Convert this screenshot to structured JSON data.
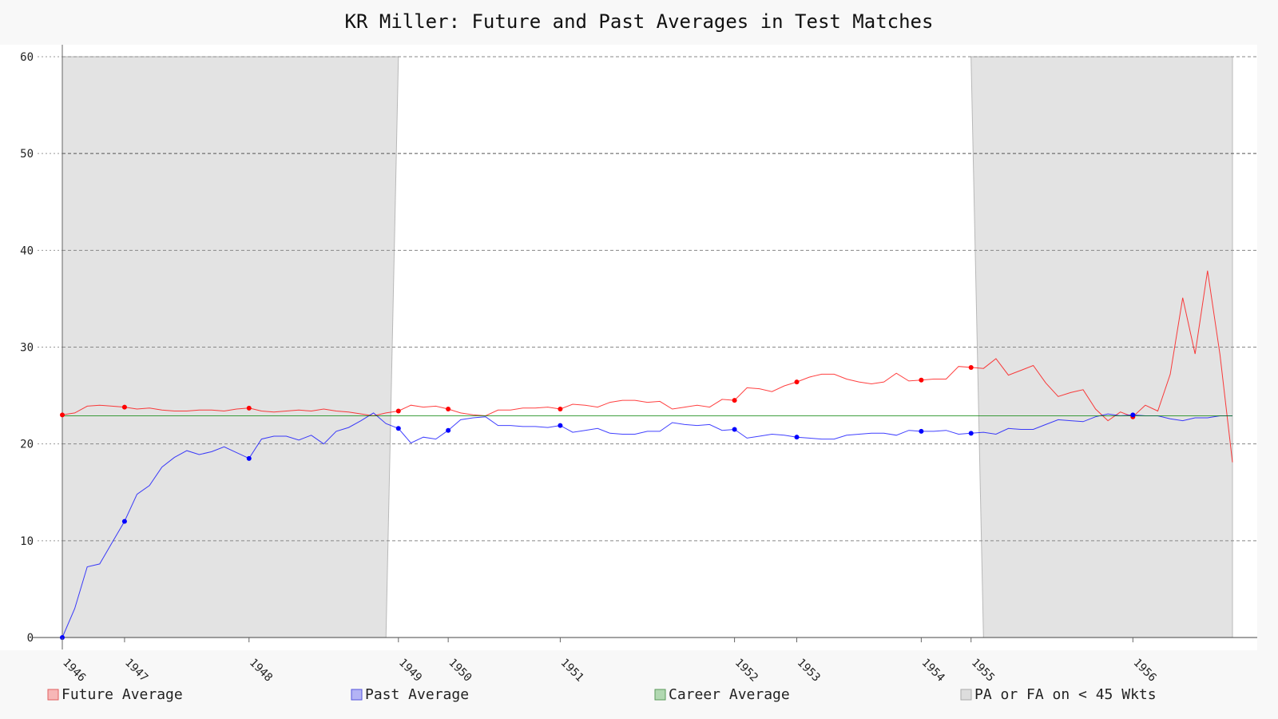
{
  "chart_data": {
    "type": "line",
    "title": "KR Miller: Future and Past Averages in Test Matches",
    "xlabel": "",
    "ylabel": "",
    "ylim": [
      0,
      60
    ],
    "yticks": [
      0,
      10,
      20,
      30,
      40,
      50,
      60
    ],
    "grid": true,
    "legend_position": "bottom",
    "x_tick_labels": [
      {
        "label": "1946",
        "index": 0
      },
      {
        "label": "1947",
        "index": 5
      },
      {
        "label": "1948",
        "index": 15
      },
      {
        "label": "1949",
        "index": 27
      },
      {
        "label": "1950",
        "index": 31
      },
      {
        "label": "1951",
        "index": 40
      },
      {
        "label": "1952",
        "index": 54
      },
      {
        "label": "1953",
        "index": 59
      },
      {
        "label": "1954",
        "index": 69
      },
      {
        "label": "1955",
        "index": 73
      },
      {
        "label": "1956",
        "index": 86
      }
    ],
    "series": [
      {
        "name": "Future Average",
        "color": "#ff0000",
        "values": [
          23.0,
          23.2,
          23.9,
          24.0,
          23.9,
          23.8,
          23.6,
          23.7,
          23.5,
          23.4,
          23.4,
          23.5,
          23.5,
          23.4,
          23.6,
          23.7,
          23.4,
          23.3,
          23.4,
          23.5,
          23.4,
          23.6,
          23.4,
          23.3,
          23.1,
          22.9,
          23.2,
          23.4,
          24.0,
          23.8,
          23.9,
          23.6,
          23.2,
          23.0,
          22.9,
          23.5,
          23.5,
          23.7,
          23.7,
          23.8,
          23.6,
          24.1,
          24.0,
          23.8,
          24.3,
          24.5,
          24.5,
          24.3,
          24.4,
          23.6,
          23.8,
          24.0,
          23.8,
          24.6,
          24.5,
          25.8,
          25.7,
          25.4,
          26.0,
          26.4,
          26.9,
          27.2,
          27.2,
          26.7,
          26.4,
          26.2,
          26.4,
          27.3,
          26.5,
          26.6,
          26.7,
          26.7,
          28.0,
          27.9,
          27.8,
          28.8,
          27.1,
          27.6,
          28.1,
          26.3,
          24.9,
          25.3,
          25.6,
          23.6,
          22.4,
          23.3,
          22.8,
          24.0,
          23.4,
          27.2,
          35.1,
          29.3,
          37.9,
          29.2,
          18.1
        ],
        "markers": [
          {
            "index": 0,
            "value": 23.0
          },
          {
            "index": 5,
            "value": 23.8
          },
          {
            "index": 15,
            "value": 23.7
          },
          {
            "index": 27,
            "value": 23.4
          },
          {
            "index": 31,
            "value": 23.6
          },
          {
            "index": 40,
            "value": 23.6
          },
          {
            "index": 54,
            "value": 24.5
          },
          {
            "index": 59,
            "value": 26.4
          },
          {
            "index": 69,
            "value": 26.6
          },
          {
            "index": 73,
            "value": 27.9
          },
          {
            "index": 86,
            "value": 22.8
          }
        ]
      },
      {
        "name": "Past Average",
        "color": "#0000ff",
        "values": [
          0.0,
          3.0,
          7.3,
          7.6,
          9.8,
          12.0,
          14.8,
          15.7,
          17.6,
          18.6,
          19.3,
          18.9,
          19.2,
          19.7,
          19.1,
          18.5,
          20.5,
          20.8,
          20.8,
          20.4,
          20.9,
          20.0,
          21.3,
          21.7,
          22.4,
          23.2,
          22.1,
          21.6,
          20.1,
          20.7,
          20.5,
          21.4,
          22.5,
          22.7,
          22.8,
          21.9,
          21.9,
          21.8,
          21.8,
          21.7,
          21.9,
          21.2,
          21.4,
          21.6,
          21.1,
          21.0,
          21.0,
          21.3,
          21.3,
          22.2,
          22.0,
          21.9,
          22.0,
          21.4,
          21.5,
          20.6,
          20.8,
          21.0,
          20.9,
          20.7,
          20.6,
          20.5,
          20.5,
          20.9,
          21.0,
          21.1,
          21.1,
          20.9,
          21.4,
          21.3,
          21.3,
          21.4,
          21.0,
          21.1,
          21.2,
          21.0,
          21.6,
          21.5,
          21.5,
          22.0,
          22.5,
          22.4,
          22.3,
          22.8,
          23.1,
          22.9,
          23.0,
          22.9,
          22.9,
          22.6,
          22.4,
          22.7,
          22.7,
          22.9,
          22.9
        ],
        "markers": [
          {
            "index": 0,
            "value": 0.0
          },
          {
            "index": 5,
            "value": 12.0
          },
          {
            "index": 15,
            "value": 18.5
          },
          {
            "index": 27,
            "value": 21.6
          },
          {
            "index": 31,
            "value": 21.4
          },
          {
            "index": 40,
            "value": 21.9
          },
          {
            "index": 54,
            "value": 21.5
          },
          {
            "index": 59,
            "value": 20.7
          },
          {
            "index": 69,
            "value": 21.3
          },
          {
            "index": 73,
            "value": 21.1
          },
          {
            "index": 86,
            "value": 23.0
          }
        ]
      },
      {
        "name": "Career Average",
        "color": "#008000",
        "values": [
          22.9,
          22.9
        ]
      }
    ],
    "shaded_regions": {
      "name": "PA or FA on < 45 Wkts",
      "color": "#d3d3d3",
      "regions": [
        {
          "top_start": 0,
          "top_end": 27,
          "bottom_start": 0,
          "bottom_end": 26
        },
        {
          "top_start": 73,
          "top_end": 94,
          "bottom_start": 74,
          "bottom_end": 94
        }
      ],
      "y_top": 60,
      "y_bottom": 0
    },
    "legend": [
      {
        "label": "Future Average",
        "color": "#ff0000"
      },
      {
        "label": "Past Average",
        "color": "#0000ff"
      },
      {
        "label": "Career Average",
        "color": "#008000"
      },
      {
        "label": "PA or FA on < 45 Wkts",
        "color": "#d3d3d3"
      }
    ]
  }
}
